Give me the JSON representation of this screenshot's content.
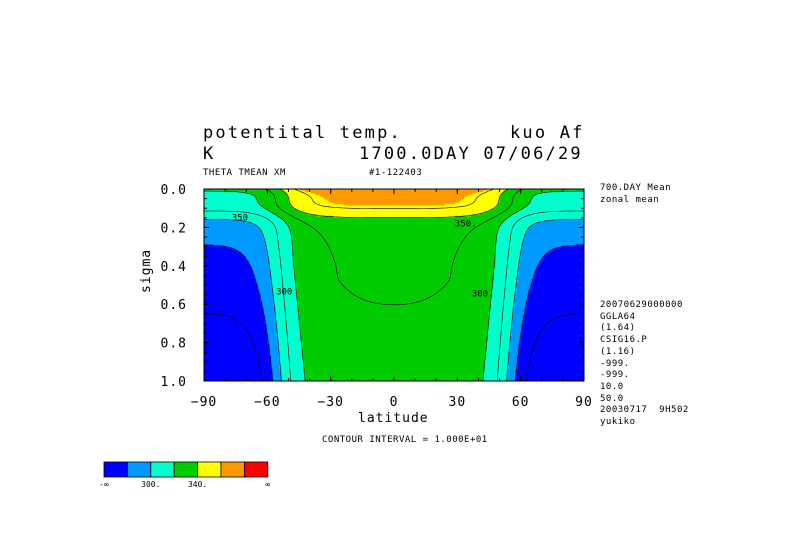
{
  "header": {
    "title_left": "potentital temp.",
    "title_right": "kuo Af",
    "unit": "K",
    "time_line": "1700.0DAY 07/06/29",
    "var_line": "THETA TMEAN XM",
    "run_id": "#1-122403"
  },
  "side_panel": {
    "lines": [
      "700.DAY Mean",
      "zonal mean",
      "",
      "",
      "",
      "",
      "",
      "",
      "",
      "",
      "20070629000000",
      "GGLA64",
      "(1.64)",
      "CSIG16.P",
      "(1.16)",
      "-999.",
      "-999.",
      "10.0",
      "50.0",
      "20030717  9H502",
      "yukiko"
    ]
  },
  "footer": {
    "contour_interval": "CONTOUR INTERVAL = 1.000E+01"
  },
  "colorbar": {
    "colors": [
      "#0000ff",
      "#0099ff",
      "#00ffcc",
      "#00cc00",
      "#ffff00",
      "#ff9900",
      "#ff0000"
    ],
    "labels": [
      "-∞",
      "300.",
      "340.",
      "∞"
    ]
  },
  "chart_data": {
    "type": "contour",
    "xlabel": "latitude",
    "ylabel": "sigma",
    "xlim": [
      -90,
      90
    ],
    "ylim": [
      1.0,
      0.0
    ],
    "x_ticks": [
      -90,
      -60,
      -30,
      0,
      30,
      60,
      90
    ],
    "x_tick_labels": [
      "−90",
      "−60",
      "−30",
      "0",
      "30",
      "60",
      "90"
    ],
    "y_ticks": [
      0.0,
      0.2,
      0.4,
      0.6,
      0.8,
      1.0
    ],
    "y_tick_labels": [
      "0.0",
      "0.2",
      "0.4",
      "0.6",
      "0.8",
      "1.0"
    ],
    "contour_interval": 10,
    "contour_labels": [
      {
        "text": "300",
        "lat": -52,
        "sigma": 0.55
      },
      {
        "text": "300.",
        "lat": 42,
        "sigma": 0.56
      },
      {
        "text": "350",
        "lat": -73,
        "sigma": 0.165
      },
      {
        "text": "350.",
        "lat": 34,
        "sigma": 0.195
      }
    ],
    "levels": [
      {
        "value": 280,
        "color": "#0000ff"
      },
      {
        "value": 290,
        "color": "#0099ff"
      },
      {
        "value": 300,
        "color": "#00ffcc"
      },
      {
        "value": 310,
        "color": "#00ffcc"
      },
      {
        "value": 320,
        "color": "#00cc00"
      },
      {
        "value": 330,
        "color": "#00cc00"
      },
      {
        "value": 340,
        "color": "#ffff00"
      },
      {
        "value": 350,
        "color": "#ffff00"
      }
    ]
  }
}
